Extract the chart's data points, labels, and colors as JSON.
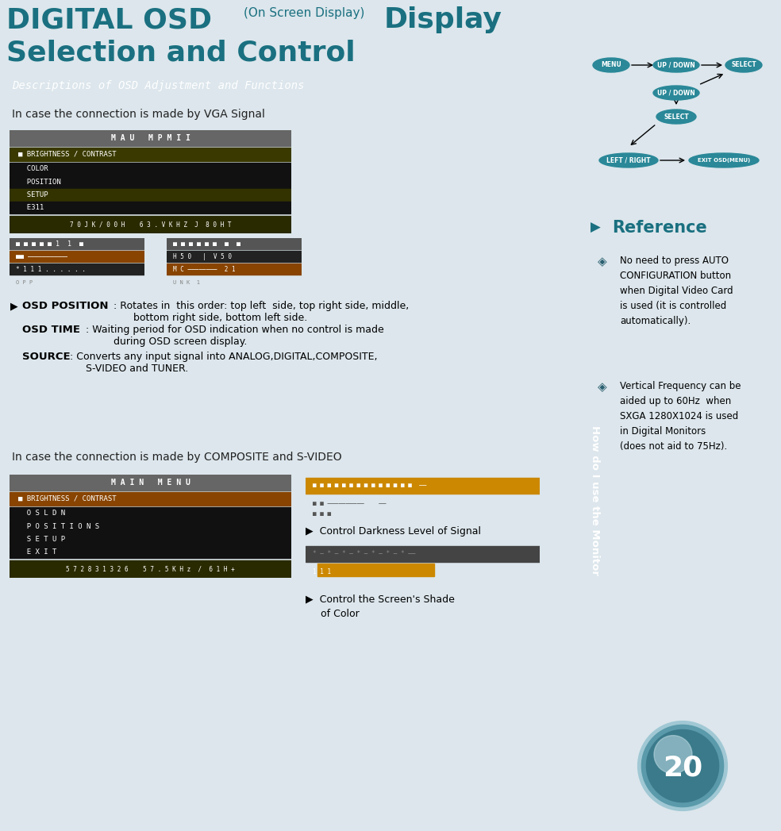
{
  "title_digital_osd": "DIGITAL OSD",
  "title_on_screen": "(On Screen Display)",
  "title_display": "Display",
  "title_line2": "Selection and Control",
  "section_bar_text": "Descriptions of OSD Adjustment and Functions",
  "vga_bar_text": "In case the connection is made by VGA Signal",
  "composite_bar_text": "In case the connection is made by COMPOSITE and S-VIDEO",
  "control_darkness_text": "Control Darkness Level of Signal",
  "control_shade_text": "Control the Screen's Shade\nof Color",
  "reference_title": "Reference",
  "note1_text": "No need to press AUTO\nCONFIGURATION button\nwhen Digital Video Card\nis used (it is controlled\nautomatically).",
  "note2_text": "Vertical Frequency can be\naided up to 60Hz  when\nSXGA 1280X1024 is used\nin Digital Monitors\n(does not aid to 75Hz).",
  "sidebar_text": "How do I use the Monitor",
  "page_number": "20",
  "bg_color": "#dce6ec",
  "right_panel_bg": "#d0dde5",
  "main_bg": "#ffffff",
  "section_bar_bg": "#505050",
  "section_bar_fg": "#ffffff",
  "vga_bar_bg": "#cdd9e0",
  "title_color": "#1a7080",
  "teal_color": "#1a7080",
  "sidebar_color": "#7faab8",
  "note_border": "#7ab0be"
}
